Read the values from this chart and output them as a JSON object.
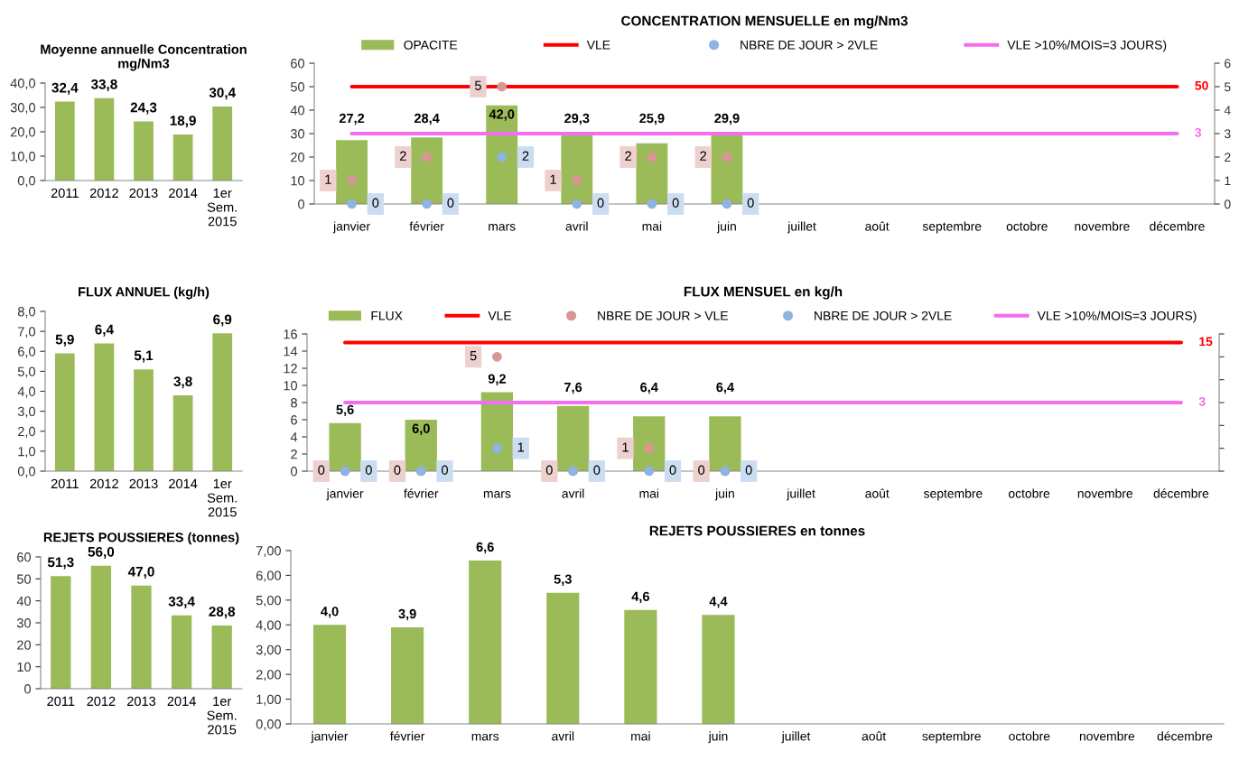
{
  "chart_data": [
    {
      "type": "bar",
      "title": "Moyenne annuelle Concentration\nmg/Nm3",
      "categories": [
        "2011",
        "2012",
        "2013",
        "2014",
        "1er\nSem.\n2015"
      ],
      "values": [
        32.4,
        33.8,
        24.3,
        18.9,
        30.4
      ],
      "color": "#9bbb59",
      "value_labels": [
        "32,4",
        "33,8",
        "24,3",
        "18,9",
        "30,4"
      ],
      "ylim": [
        0,
        40
      ],
      "yticks": [
        {
          "value": 0,
          "label": "0,0"
        },
        {
          "value": 10,
          "label": "10,0"
        },
        {
          "value": 20,
          "label": "20,0"
        },
        {
          "value": 30,
          "label": "30,0"
        },
        {
          "value": 40,
          "label": "40,0"
        }
      ],
      "grid": false,
      "legend": false
    },
    {
      "type": "bar",
      "title": "CONCENTRATION MENSUELLE en mg/Nm3",
      "categories": [
        "janvier",
        "février",
        "mars",
        "avril",
        "mai",
        "juin",
        "juillet",
        "août",
        "septembre",
        "octobre",
        "novembre",
        "décembre"
      ],
      "series": [
        {
          "name": "OPACITE",
          "type": "bar",
          "color": "#9bbb59",
          "values": [
            27.2,
            28.4,
            42.0,
            29.3,
            25.9,
            29.9,
            null,
            null,
            null,
            null,
            null,
            null
          ],
          "value_labels": [
            "27,2",
            "28,4",
            "42,0",
            "29,3",
            "25,9",
            "29,9",
            null,
            null,
            null,
            null,
            null,
            null
          ]
        },
        {
          "name": "VLE",
          "type": "line",
          "color": "#ff0000",
          "values": [
            50,
            50,
            50,
            50,
            50,
            50,
            50,
            50,
            50,
            50,
            50,
            50
          ],
          "value_labels": [
            null,
            null,
            null,
            null,
            null,
            null,
            null,
            null,
            null,
            null,
            null,
            "50"
          ]
        },
        {
          "type": "scatter",
          "axis": "y2",
          "marker": "circle",
          "color": "#d99694",
          "values": [
            1,
            2,
            5,
            1,
            2,
            2,
            null,
            null,
            null,
            null,
            null,
            null
          ],
          "value_labels": [
            "1",
            "2",
            "5",
            "1",
            "2",
            "2",
            null,
            null,
            null,
            null,
            null,
            null
          ]
        },
        {
          "name": "NBRE DE JOUR > 2VLE",
          "type": "scatter",
          "axis": "y2",
          "marker": "circle",
          "color": "#8eb4e3",
          "values": [
            0,
            0,
            2,
            0,
            0,
            0,
            null,
            null,
            null,
            null,
            null,
            null
          ],
          "value_labels": [
            "0",
            "0",
            "2",
            "0",
            "0",
            "0",
            null,
            null,
            null,
            null,
            null,
            null
          ]
        },
        {
          "name": "VLE >10%/MOIS=3 JOURS)",
          "type": "line",
          "axis": "y2",
          "color": "#f46cf0",
          "values": [
            3,
            3,
            3,
            3,
            3,
            3,
            3,
            3,
            3,
            3,
            3,
            3
          ],
          "value_labels": [
            null,
            null,
            null,
            null,
            null,
            null,
            null,
            null,
            null,
            null,
            null,
            "3"
          ]
        }
      ],
      "ylim": [
        0,
        60
      ],
      "yticks": [
        0,
        10,
        20,
        30,
        40,
        50,
        60
      ],
      "y2lim": [
        0,
        6
      ],
      "y2ticks": [
        0,
        1,
        2,
        3,
        4,
        5,
        6
      ],
      "grid": false,
      "legend": "top"
    },
    {
      "type": "bar",
      "title": "FLUX ANNUEL (kg/h)",
      "categories": [
        "2011",
        "2012",
        "2013",
        "2014",
        "1er\nSem.\n2015"
      ],
      "values": [
        5.9,
        6.4,
        5.1,
        3.8,
        6.9
      ],
      "color": "#9bbb59",
      "value_labels": [
        "5,9",
        "6,4",
        "5,1",
        "3,8",
        "6,9"
      ],
      "ylim": [
        0,
        8
      ],
      "yticks": [
        {
          "value": 0,
          "label": "0,0"
        },
        {
          "value": 1,
          "label": "1,0"
        },
        {
          "value": 2,
          "label": "2,0"
        },
        {
          "value": 3,
          "label": "3,0"
        },
        {
          "value": 4,
          "label": "4,0"
        },
        {
          "value": 5,
          "label": "5,0"
        },
        {
          "value": 6,
          "label": "6,0"
        },
        {
          "value": 7,
          "label": "7,0"
        },
        {
          "value": 8,
          "label": "8,0"
        }
      ],
      "grid": false,
      "legend": false
    },
    {
      "type": "bar",
      "title": "FLUX MENSUEL en kg/h",
      "categories": [
        "janvier",
        "février",
        "mars",
        "avril",
        "mai",
        "juin",
        "juillet",
        "août",
        "septembre",
        "octobre",
        "novembre",
        "décembre"
      ],
      "series": [
        {
          "name": "FLUX",
          "type": "bar",
          "color": "#9bbb59",
          "values": [
            5.6,
            6.0,
            9.2,
            7.6,
            6.4,
            6.4,
            null,
            null,
            null,
            null,
            null,
            null
          ],
          "value_labels": [
            "5,6",
            "6,0",
            "9,2",
            "7,6",
            "6,4",
            "6,4",
            null,
            null,
            null,
            null,
            null,
            null
          ]
        },
        {
          "name": "VLE",
          "type": "line",
          "color": "#ff0000",
          "values": [
            15,
            15,
            15,
            15,
            15,
            15,
            15,
            15,
            15,
            15,
            15,
            15
          ],
          "value_labels": [
            null,
            null,
            null,
            null,
            null,
            null,
            null,
            null,
            null,
            null,
            null,
            "15"
          ]
        },
        {
          "name": "NBRE DE JOUR > VLE",
          "type": "scatter",
          "axis": "y2",
          "marker": "circle",
          "color": "#d99694",
          "values": [
            0,
            0,
            5,
            0,
            1,
            0,
            null,
            null,
            null,
            null,
            null,
            null
          ],
          "value_labels": [
            "0",
            "0",
            "5",
            "0",
            "1",
            "0",
            null,
            null,
            null,
            null,
            null,
            null
          ]
        },
        {
          "name": "NBRE DE JOUR > 2VLE",
          "type": "scatter",
          "axis": "y2",
          "marker": "circle",
          "color": "#8eb4e3",
          "values": [
            0,
            0,
            1,
            0,
            0,
            0,
            null,
            null,
            null,
            null,
            null,
            null
          ],
          "value_labels": [
            "0",
            "0",
            "1",
            "0",
            "0",
            "0",
            null,
            null,
            null,
            null,
            null,
            null
          ]
        },
        {
          "name": "VLE >10%/MOIS=3 JOURS)",
          "type": "line",
          "axis": "y2",
          "color": "#f46cf0",
          "values": [
            3,
            3,
            3,
            3,
            3,
            3,
            3,
            3,
            3,
            3,
            3,
            3
          ],
          "value_labels": [
            null,
            null,
            null,
            null,
            null,
            null,
            null,
            null,
            null,
            null,
            null,
            "3"
          ]
        }
      ],
      "ylim": [
        0,
        16
      ],
      "yticks": [
        0,
        2,
        4,
        6,
        8,
        10,
        12,
        14,
        16
      ],
      "y2lim": [
        0,
        6
      ],
      "y2ticks": [
        {
          "value": 0,
          "label": null
        },
        {
          "value": 1,
          "label": null
        },
        {
          "value": 2,
          "label": null
        },
        {
          "value": 3,
          "label": null
        },
        {
          "value": 4,
          "label": null
        },
        {
          "value": 5,
          "label": null
        },
        {
          "value": 6,
          "label": null
        }
      ],
      "grid": false,
      "legend": "top"
    },
    {
      "type": "bar",
      "title": "REJETS POUSSIERES (tonnes)",
      "categories": [
        "2011",
        "2012",
        "2013",
        "2014",
        "1er\nSem.\n2015"
      ],
      "values": [
        51.3,
        56.0,
        47.0,
        33.4,
        28.8
      ],
      "color": "#9bbb59",
      "value_labels": [
        "51,3",
        "56,0",
        "47,0",
        "33,4",
        "28,8"
      ],
      "ylim": [
        0,
        60
      ],
      "yticks": [
        0,
        10,
        20,
        30,
        40,
        50,
        60
      ],
      "grid": false,
      "legend": false
    },
    {
      "type": "bar",
      "title": "REJETS POUSSIERES en tonnes",
      "categories": [
        "janvier",
        "février",
        "mars",
        "avril",
        "mai",
        "juin",
        "juillet",
        "août",
        "septembre",
        "octobre",
        "novembre",
        "décembre"
      ],
      "values": [
        4.0,
        3.9,
        6.6,
        5.3,
        4.6,
        4.4,
        null,
        null,
        null,
        null,
        null,
        null
      ],
      "color": "#9bbb59",
      "value_labels": [
        "4,0",
        "3,9",
        "6,6",
        "5,3",
        "4,6",
        "4,4",
        null,
        null,
        null,
        null,
        null,
        null
      ],
      "ylim": [
        0,
        7
      ],
      "yticks": [
        {
          "value": 0,
          "label": "0,00"
        },
        {
          "value": 1,
          "label": "1,00"
        },
        {
          "value": 2,
          "label": "2,00"
        },
        {
          "value": 3,
          "label": "3,00"
        },
        {
          "value": 4,
          "label": "4,00"
        },
        {
          "value": 5,
          "label": "5,00"
        },
        {
          "value": 6,
          "label": "6,00"
        },
        {
          "value": 7,
          "label": "7,00"
        }
      ],
      "grid": false,
      "legend": false
    }
  ]
}
